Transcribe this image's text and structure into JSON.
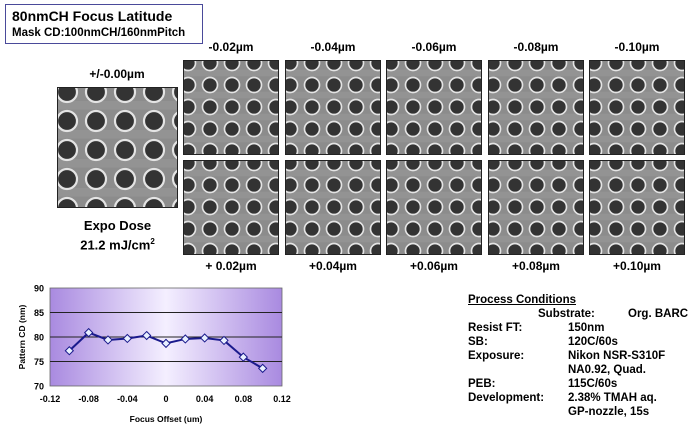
{
  "title": {
    "line1": "80nmCH  Focus  Latitude",
    "line2": "Mask CD:100nmCH/160nmPitch"
  },
  "center_image": {
    "label": "+/-0.00µm",
    "dose_label": "Expo Dose",
    "dose_value": "21.2 mJ/cm",
    "dose_sup": "2"
  },
  "top_row_labels": [
    "-0.02µm",
    "-0.04µm",
    "-0.06µm",
    "-0.08µm",
    "-0.10µm"
  ],
  "bottom_row_labels": [
    "+ 0.02µm",
    "+0.04µm",
    "+0.06µm",
    "+0.08µm",
    "+0.10µm"
  ],
  "colors": {
    "sem_bg": "#8c8c8c",
    "hole": "#333333",
    "rim": "#e4e4e4",
    "line": "#1a1a8c",
    "plot_edge": "#a98ae0",
    "plot_center": "#f4efff"
  },
  "process": {
    "heading": "Process Conditions",
    "substrate_label": "Substrate:",
    "substrate_value": "Org. BARC",
    "rows": [
      {
        "label": "Resist FT:",
        "value": "150nm"
      },
      {
        "label": "SB:",
        "value": "120C/60s"
      },
      {
        "label": "Exposure:",
        "value": "Nikon NSR-S310F"
      },
      {
        "label": "",
        "value": "NA0.92,  Quad."
      },
      {
        "label": "PEB:",
        "value": "115C/60s"
      },
      {
        "label": "Development:",
        "value": "2.38% TMAH aq."
      },
      {
        "label": "",
        "value": "GP-nozzle, 15s"
      }
    ]
  },
  "chart_data": {
    "type": "line",
    "title": "",
    "xlabel": "Focus Offset (um)",
    "ylabel": "Pattern CD (nm)",
    "xlim": [
      -0.12,
      0.12
    ],
    "ylim": [
      70,
      90
    ],
    "xticks": [
      -0.12,
      -0.08,
      -0.04,
      0,
      0.04,
      0.08,
      0.12
    ],
    "xtick_labels": [
      "-0.12",
      "-0.08",
      "-0.04",
      "0",
      "0.04",
      "0.08",
      "0.12"
    ],
    "yticks": [
      70,
      75,
      80,
      85,
      90
    ],
    "ytick_labels": [
      "70",
      "75",
      "80",
      "85",
      "90"
    ],
    "grid": "horizontal",
    "x": [
      -0.1,
      -0.08,
      -0.06,
      -0.04,
      -0.02,
      0,
      0.02,
      0.04,
      0.06,
      0.08,
      0.1
    ],
    "y": [
      77.2,
      80.9,
      79.4,
      79.7,
      80.3,
      78.7,
      79.6,
      79.8,
      79.3,
      75.9,
      73.6
    ]
  }
}
